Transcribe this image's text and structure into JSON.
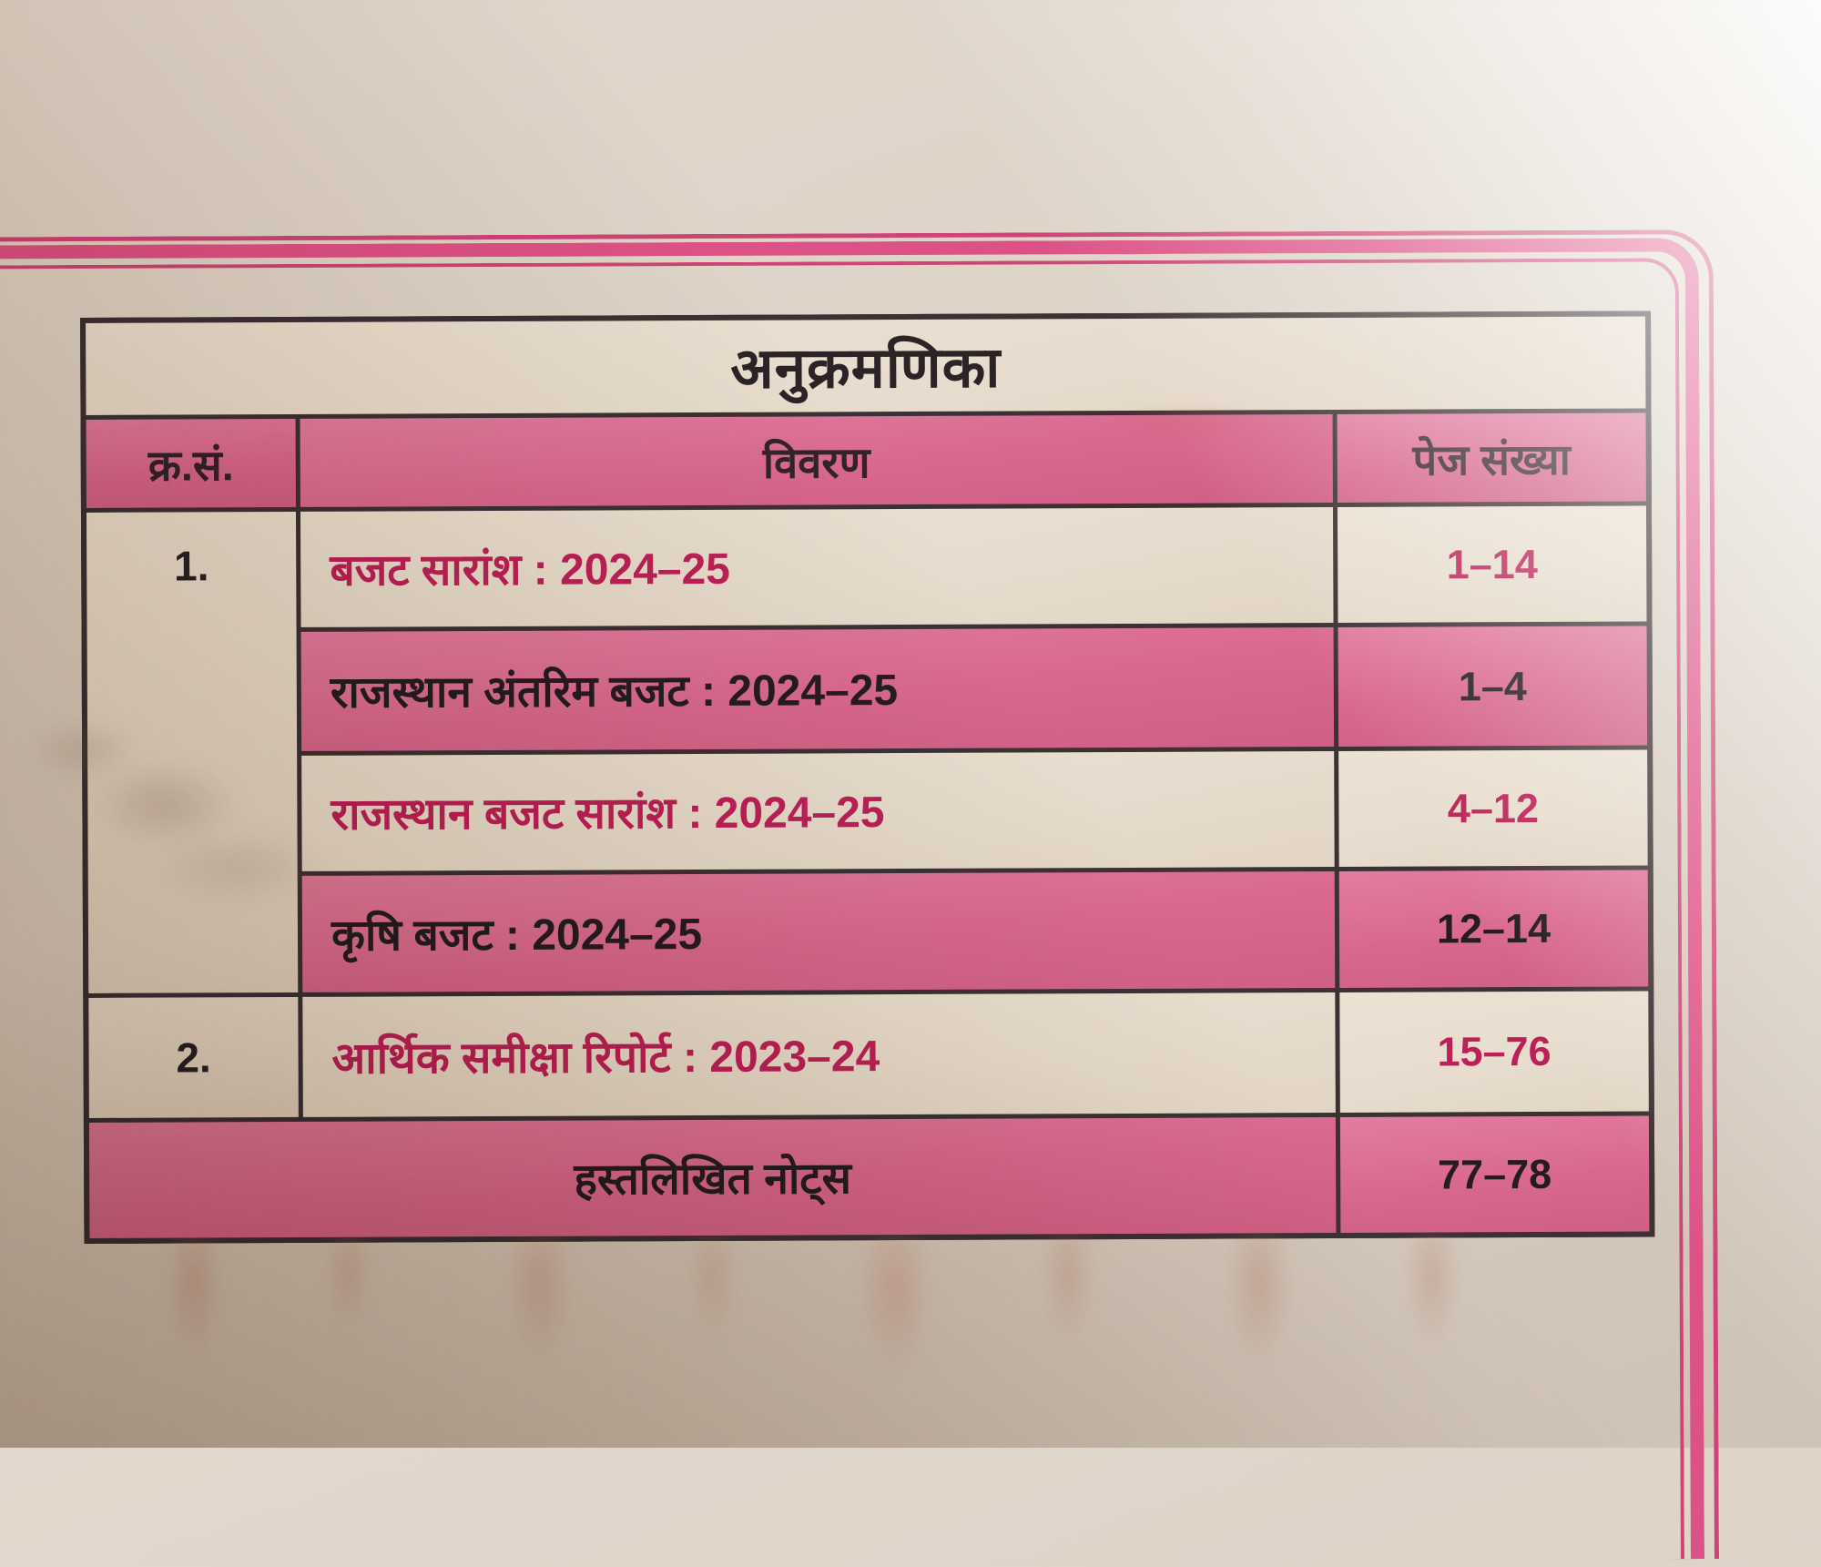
{
  "page": {
    "title": "अनुक्रमणिका",
    "colors": {
      "paper": "#dcd2c6",
      "paper_lit": "#f6f3ef",
      "pink_cell": "#d9688f",
      "pink_border": "#dd5286",
      "magenta_text": "#bd2058",
      "dark_text": "#241c1f",
      "table_line": "#3c3133"
    }
  },
  "table": {
    "headers": {
      "serial": "क्र.सं.",
      "description": "विवरण",
      "pages": "पेज संख्या"
    },
    "rows": [
      {
        "serial": "1.",
        "description": "बजट सारांश : 2024–25",
        "pages": "1–14",
        "highlighted": false
      },
      {
        "serial": "",
        "description": "राजस्थान अंतरिम बजट : 2024–25",
        "pages": "1–4",
        "highlighted": true
      },
      {
        "serial": "",
        "description": "राजस्थान बजट सारांश : 2024–25",
        "pages": "4–12",
        "highlighted": false
      },
      {
        "serial": "",
        "description": "कृषि बजट : 2024–25",
        "pages": "12–14",
        "highlighted": true
      },
      {
        "serial": "2.",
        "description": "आर्थिक समीक्षा रिपोर्ट : 2023–24",
        "pages": "15–76",
        "highlighted": false
      },
      {
        "serial": "",
        "description": "हस्तलिखित नोट्स",
        "pages": "77–78",
        "highlighted": true
      }
    ]
  }
}
